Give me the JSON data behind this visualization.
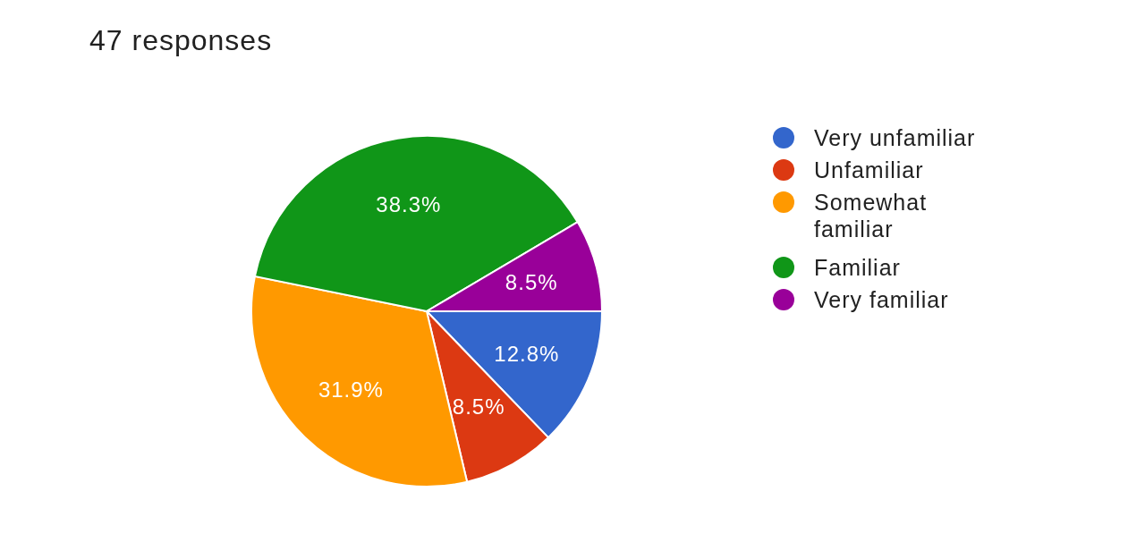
{
  "chart_data": {
    "type": "pie",
    "title": "47 responses",
    "categories": [
      "Very unfamiliar",
      "Unfamiliar",
      "Somewhat familiar",
      "Familiar",
      "Very familiar"
    ],
    "values": [
      12.8,
      8.5,
      31.9,
      38.3,
      8.5
    ],
    "value_labels": [
      "12.8%",
      "8.5%",
      "31.9%",
      "38.3%",
      "8.5%"
    ],
    "colors": [
      "#3366cc",
      "#dc3912",
      "#ff9900",
      "#109618",
      "#990099"
    ],
    "legend": "right"
  }
}
